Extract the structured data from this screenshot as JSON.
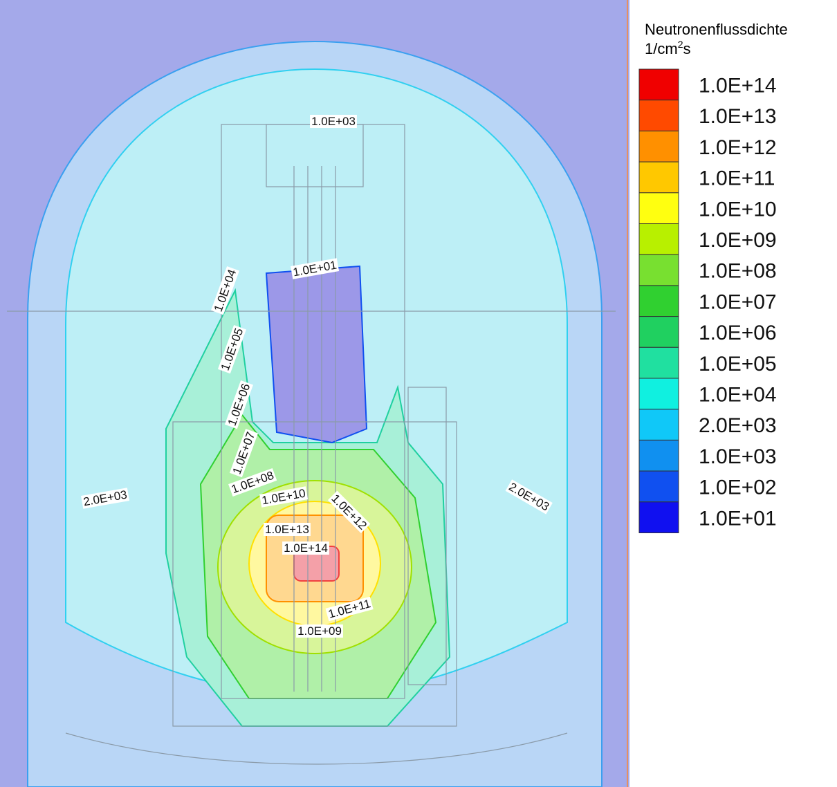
{
  "legend": {
    "title": "Neutronenflussdichte",
    "unit": {
      "base": "1/cm",
      "sup": "2",
      "tail": "s"
    },
    "entries": [
      {
        "label": "1.0E+14",
        "color": "#f00000"
      },
      {
        "label": "1.0E+13",
        "color": "#ff4a00"
      },
      {
        "label": "1.0E+12",
        "color": "#ff9000"
      },
      {
        "label": "1.0E+11",
        "color": "#ffc800"
      },
      {
        "label": "1.0E+10",
        "color": "#ffff10"
      },
      {
        "label": "1.0E+09",
        "color": "#b8f000"
      },
      {
        "label": "1.0E+08",
        "color": "#78e030"
      },
      {
        "label": "1.0E+07",
        "color": "#30d030"
      },
      {
        "label": "1.0E+06",
        "color": "#20d060"
      },
      {
        "label": "1.0E+05",
        "color": "#20e0a0"
      },
      {
        "label": "1.0E+04",
        "color": "#10f0e0"
      },
      {
        "label": "2.0E+03",
        "color": "#10c8f8"
      },
      {
        "label": "1.0E+03",
        "color": "#1090f0"
      },
      {
        "label": "1.0E+02",
        "color": "#1050f0"
      },
      {
        "label": "1.0E+01",
        "color": "#1010f0"
      }
    ]
  },
  "contour_labels": [
    "1.0E+03",
    "1.0E+01",
    "1.0E+04",
    "1.0E+05",
    "1.0E+06",
    "1.0E+07",
    "1.0E+08",
    "1.0E+10",
    "1.0E+12",
    "1.0E+13",
    "1.0E+14",
    "1.0E+11",
    "1.0E+09",
    "2.0E+03",
    "2.0E+03"
  ]
}
